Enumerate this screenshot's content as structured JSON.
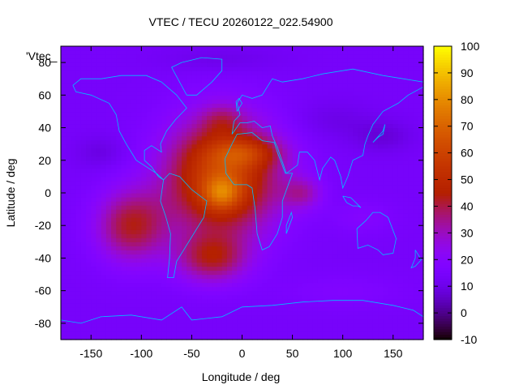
{
  "chart_data": {
    "type": "heatmap",
    "title": "VTEC / TECU 20260122_022.54900",
    "xlabel": "Longitude / deg",
    "ylabel": "Latitude / deg",
    "key_label": "'Vtec_",
    "xlim": [
      -180,
      180
    ],
    "ylim": [
      -90,
      90
    ],
    "x_ticks": [
      -150,
      -100,
      -50,
      0,
      50,
      100,
      150
    ],
    "y_ticks": [
      -80,
      -60,
      -40,
      -20,
      0,
      20,
      40,
      60,
      80
    ],
    "colorbar": {
      "range": [
        -10,
        100
      ],
      "ticks": [
        -10,
        0,
        10,
        20,
        30,
        40,
        50,
        60,
        70,
        80,
        90,
        100
      ]
    },
    "field": {
      "background": 14,
      "blobs": [
        {
          "lon": -20,
          "lat": 10,
          "slon": 55,
          "slat": 35,
          "amp": 48
        },
        {
          "lon": -20,
          "lat": 0,
          "slon": 18,
          "slat": 10,
          "amp": 22
        },
        {
          "lon": 5,
          "lat": 25,
          "slon": 35,
          "slat": 9,
          "amp": 18
        },
        {
          "lon": -110,
          "lat": -20,
          "slon": 35,
          "slat": 22,
          "amp": 28
        },
        {
          "lon": -30,
          "lat": -40,
          "slon": 35,
          "slat": 15,
          "amp": 25
        },
        {
          "lon": -20,
          "lat": 45,
          "slon": 20,
          "slat": 10,
          "amp": 10
        },
        {
          "lon": 60,
          "lat": 0,
          "slon": 20,
          "slat": 10,
          "amp": 15
        },
        {
          "lon": 120,
          "lat": -15,
          "slon": 30,
          "slat": 10,
          "amp": 5
        },
        {
          "lon": 140,
          "lat": 35,
          "slon": 30,
          "slat": 10,
          "amp": -6
        },
        {
          "lon": 90,
          "lat": 45,
          "slon": 40,
          "slat": 12,
          "amp": -4
        },
        {
          "lon": -140,
          "lat": 25,
          "slon": 25,
          "slat": 10,
          "amp": -5
        },
        {
          "lon": -20,
          "lat": 82,
          "slon": 60,
          "slat": 8,
          "amp": -4
        },
        {
          "lon": 100,
          "lat": -60,
          "slon": 60,
          "slat": 10,
          "amp": 4
        }
      ]
    },
    "coastline_color": "#00bfff",
    "colormap": "gnuplot default pm3d (black-purple-red-orange-yellow)"
  }
}
